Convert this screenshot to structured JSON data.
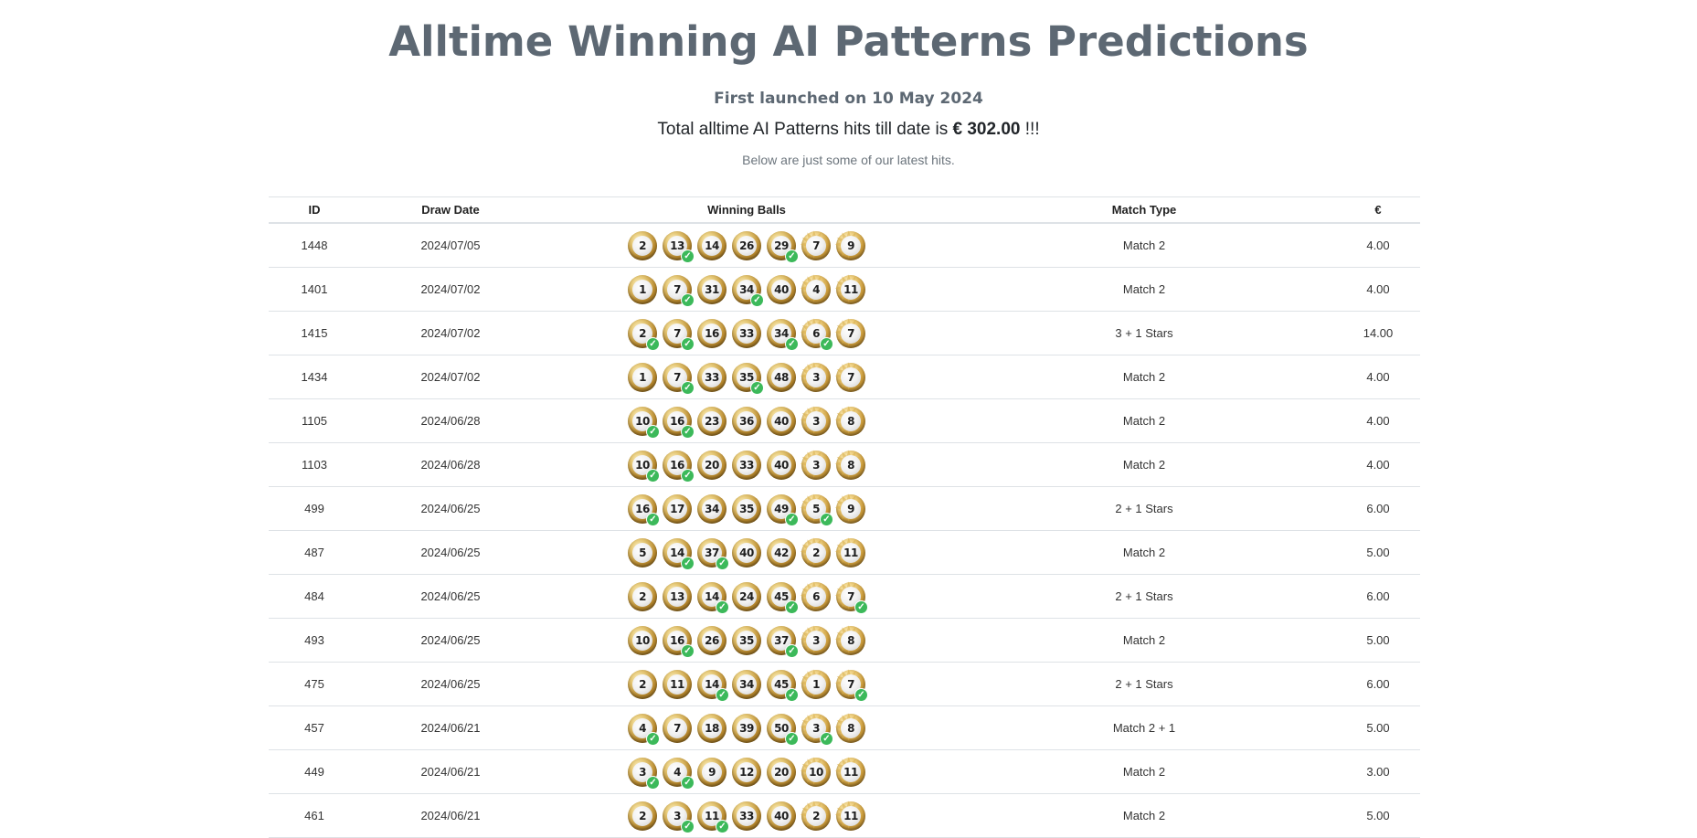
{
  "header": {
    "title": "Alltime Winning AI Patterns Predictions",
    "launched": "First launched on 10 May 2024",
    "total_prefix": "Total alltime AI Patterns hits till date is ",
    "total_amount": "€ 302.00",
    "total_suffix": " !!!",
    "subtitle": "Below are just some of our latest hits."
  },
  "table": {
    "columns": [
      "ID",
      "Draw Date",
      "Winning Balls",
      "Match Type",
      "€"
    ],
    "rows": [
      {
        "id": "1448",
        "date": "2024/07/05",
        "balls": [
          [
            "2",
            0
          ],
          [
            "13",
            1
          ],
          [
            "14",
            0
          ],
          [
            "26",
            0
          ],
          [
            "29",
            1
          ],
          [
            "7",
            0
          ],
          [
            "9",
            0
          ]
        ],
        "type": "Match 2",
        "eur": "4.00"
      },
      {
        "id": "1401",
        "date": "2024/07/02",
        "balls": [
          [
            "1",
            0
          ],
          [
            "7",
            1
          ],
          [
            "31",
            0
          ],
          [
            "34",
            1
          ],
          [
            "40",
            0
          ],
          [
            "4",
            0
          ],
          [
            "11",
            0
          ]
        ],
        "type": "Match 2",
        "eur": "4.00"
      },
      {
        "id": "1415",
        "date": "2024/07/02",
        "balls": [
          [
            "2",
            1
          ],
          [
            "7",
            1
          ],
          [
            "16",
            0
          ],
          [
            "33",
            0
          ],
          [
            "34",
            1
          ],
          [
            "6",
            1
          ],
          [
            "7",
            0
          ]
        ],
        "type": "3 + 1 Stars",
        "eur": "14.00"
      },
      {
        "id": "1434",
        "date": "2024/07/02",
        "balls": [
          [
            "1",
            0
          ],
          [
            "7",
            1
          ],
          [
            "33",
            0
          ],
          [
            "35",
            1
          ],
          [
            "48",
            0
          ],
          [
            "3",
            0
          ],
          [
            "7",
            0
          ]
        ],
        "type": "Match 2",
        "eur": "4.00"
      },
      {
        "id": "1105",
        "date": "2024/06/28",
        "balls": [
          [
            "10",
            1
          ],
          [
            "16",
            1
          ],
          [
            "23",
            0
          ],
          [
            "36",
            0
          ],
          [
            "40",
            0
          ],
          [
            "3",
            0
          ],
          [
            "8",
            0
          ]
        ],
        "type": "Match 2",
        "eur": "4.00"
      },
      {
        "id": "1103",
        "date": "2024/06/28",
        "balls": [
          [
            "10",
            1
          ],
          [
            "16",
            1
          ],
          [
            "20",
            0
          ],
          [
            "33",
            0
          ],
          [
            "40",
            0
          ],
          [
            "3",
            0
          ],
          [
            "8",
            0
          ]
        ],
        "type": "Match 2",
        "eur": "4.00"
      },
      {
        "id": "499",
        "date": "2024/06/25",
        "balls": [
          [
            "16",
            1
          ],
          [
            "17",
            0
          ],
          [
            "34",
            0
          ],
          [
            "35",
            0
          ],
          [
            "49",
            1
          ],
          [
            "5",
            1
          ],
          [
            "9",
            0
          ]
        ],
        "type": "2 + 1 Stars",
        "eur": "6.00"
      },
      {
        "id": "487",
        "date": "2024/06/25",
        "balls": [
          [
            "5",
            0
          ],
          [
            "14",
            1
          ],
          [
            "37",
            1
          ],
          [
            "40",
            0
          ],
          [
            "42",
            0
          ],
          [
            "2",
            0
          ],
          [
            "11",
            0
          ]
        ],
        "type": "Match 2",
        "eur": "5.00"
      },
      {
        "id": "484",
        "date": "2024/06/25",
        "balls": [
          [
            "2",
            0
          ],
          [
            "13",
            0
          ],
          [
            "14",
            1
          ],
          [
            "24",
            0
          ],
          [
            "45",
            1
          ],
          [
            "6",
            0
          ],
          [
            "7",
            1
          ]
        ],
        "type": "2 + 1 Stars",
        "eur": "6.00"
      },
      {
        "id": "493",
        "date": "2024/06/25",
        "balls": [
          [
            "10",
            0
          ],
          [
            "16",
            1
          ],
          [
            "26",
            0
          ],
          [
            "35",
            0
          ],
          [
            "37",
            1
          ],
          [
            "3",
            0
          ],
          [
            "8",
            0
          ]
        ],
        "type": "Match 2",
        "eur": "5.00"
      },
      {
        "id": "475",
        "date": "2024/06/25",
        "balls": [
          [
            "2",
            0
          ],
          [
            "11",
            0
          ],
          [
            "14",
            1
          ],
          [
            "34",
            0
          ],
          [
            "45",
            1
          ],
          [
            "1",
            0
          ],
          [
            "7",
            1
          ]
        ],
        "type": "2 + 1 Stars",
        "eur": "6.00"
      },
      {
        "id": "457",
        "date": "2024/06/21",
        "balls": [
          [
            "4",
            1
          ],
          [
            "7",
            0
          ],
          [
            "18",
            0
          ],
          [
            "39",
            0
          ],
          [
            "50",
            1
          ],
          [
            "3",
            1
          ],
          [
            "8",
            0
          ]
        ],
        "type": "Match 2 + 1",
        "eur": "5.00"
      },
      {
        "id": "449",
        "date": "2024/06/21",
        "balls": [
          [
            "3",
            1
          ],
          [
            "4",
            1
          ],
          [
            "9",
            0
          ],
          [
            "12",
            0
          ],
          [
            "20",
            0
          ],
          [
            "10",
            0
          ],
          [
            "11",
            0
          ]
        ],
        "type": "Match 2",
        "eur": "3.00"
      },
      {
        "id": "461",
        "date": "2024/06/21",
        "balls": [
          [
            "2",
            0
          ],
          [
            "3",
            1
          ],
          [
            "11",
            1
          ],
          [
            "33",
            0
          ],
          [
            "40",
            0
          ],
          [
            "2",
            0
          ],
          [
            "11",
            0
          ]
        ],
        "type": "Match 2",
        "eur": "5.00"
      }
    ]
  },
  "icons": {
    "match_marker": "check-icon",
    "check_color": "#3cb95a",
    "star_ball": "star-ball-icon"
  },
  "colors": {
    "title": "#5d6873",
    "text": "#212529",
    "muted": "#6c757d",
    "gold": "#b8892e"
  }
}
